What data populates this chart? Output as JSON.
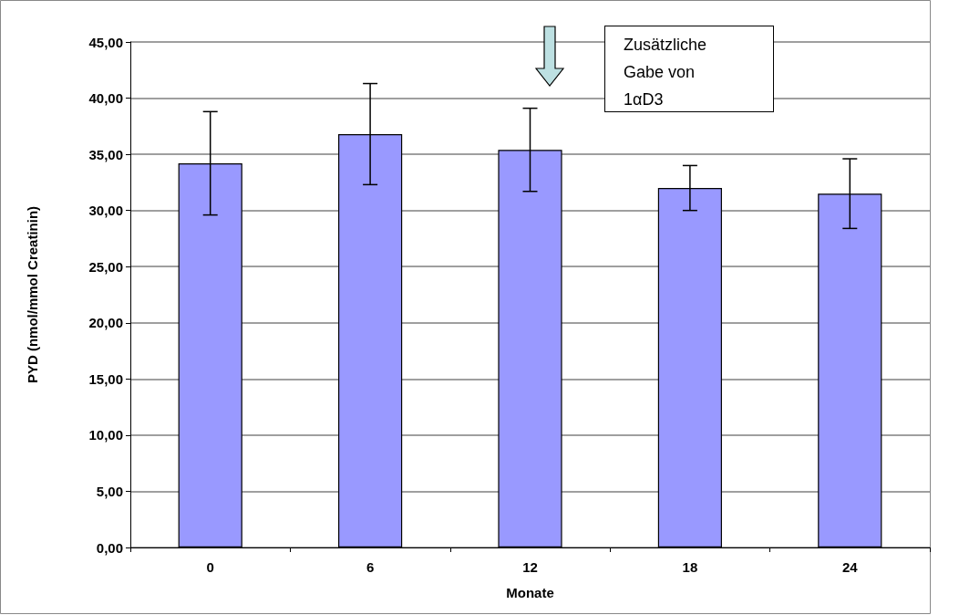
{
  "chart_data": {
    "type": "bar",
    "xlabel": "Monate",
    "ylabel": "PYD (nmol/mmol Creatinin)",
    "categories": [
      "0",
      "6",
      "12",
      "18",
      "24"
    ],
    "series": [
      {
        "color": "#9999ff",
        "values": [
          34.2,
          36.8,
          35.4,
          32.0,
          31.5
        ],
        "errors": [
          4.6,
          4.5,
          3.7,
          2.0,
          3.1
        ]
      }
    ],
    "ylim": [
      0,
      45
    ],
    "yticks": [
      {
        "value": 0,
        "label": "0,00"
      },
      {
        "value": 5,
        "label": "5,00"
      },
      {
        "value": 10,
        "label": "10,00"
      },
      {
        "value": 15,
        "label": "15,00"
      },
      {
        "value": 20,
        "label": "20,00"
      },
      {
        "value": 25,
        "label": "25,00"
      },
      {
        "value": 30,
        "label": "30,00"
      },
      {
        "value": 35,
        "label": "35,00"
      },
      {
        "value": 40,
        "label": "40,00"
      },
      {
        "value": 45,
        "label": "45,00"
      }
    ],
    "grid": "y",
    "annotations": [
      "Zusätzliche\nGabe von\n1αD3"
    ]
  }
}
